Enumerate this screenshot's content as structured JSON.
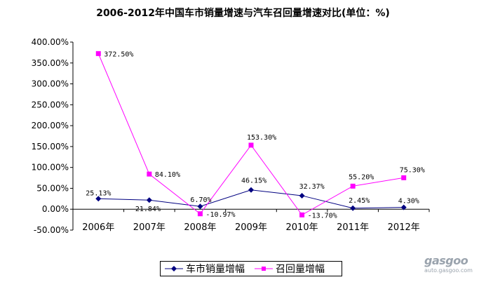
{
  "chart_data": {
    "type": "line",
    "title": "2006-2012年中国车市销量增速与汽车召回量增速对比(单位：%)",
    "categories": [
      "2006年",
      "2007年",
      "2008年",
      "2009年",
      "2010年",
      "2011年",
      "2012年"
    ],
    "ylim": [
      -50,
      400
    ],
    "yticks": [
      400,
      350,
      300,
      250,
      200,
      150,
      100,
      50,
      0,
      -50
    ],
    "ytick_labels": [
      "400.00%",
      "350.00%",
      "300.00%",
      "250.00%",
      "200.00%",
      "150.00%",
      "100.00%",
      "50.00%",
      "0.00%",
      "-50.00%"
    ],
    "grid": false,
    "legend_position": "bottom",
    "series": [
      {
        "name": "车市销量增幅",
        "color": "#000080",
        "marker": "diamond",
        "values": [
          25.13,
          21.84,
          6.7,
          46.15,
          32.37,
          2.45,
          4.3
        ],
        "labels": [
          "25.13%",
          "21.84%",
          "6.70%",
          "46.15%",
          "32.37%",
          "2.45%",
          "4.30%"
        ]
      },
      {
        "name": "召回量增幅",
        "color": "#ff00ff",
        "marker": "square",
        "values": [
          372.5,
          84.1,
          -10.97,
          153.3,
          -13.7,
          55.2,
          75.3
        ],
        "labels": [
          "372.50%",
          "84.10%",
          "-10.97%",
          "153.30%",
          "-13.70%",
          "55.20%",
          "75.30%"
        ]
      }
    ]
  },
  "watermark": {
    "logo_text": "gasgoo",
    "sub_text": "auto.gasgoo.com",
    "icon": "gasgoo-car-logo"
  }
}
